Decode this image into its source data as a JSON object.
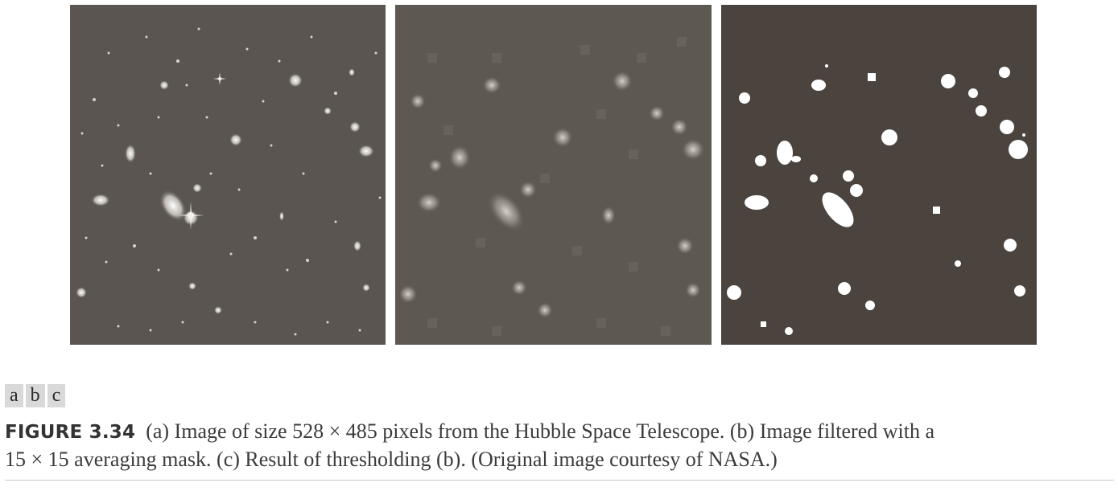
{
  "panels": [
    {
      "key": "a",
      "description_name": "hubble-original-image"
    },
    {
      "key": "b",
      "description_name": "averaged-filtered-image"
    },
    {
      "key": "c",
      "description_name": "thresholded-image"
    }
  ],
  "subfigure_labels": [
    "a",
    "b",
    "c"
  ],
  "caption": {
    "figure_number": "FIGURE 3.34",
    "line1": "(a) Image of size 528 × 485 pixels from the Hubble Space Telescope. (b) Image filtered with a",
    "line2": "15 × 15 averaging mask. (c) Result of thresholding (b). (Original image courtesy of NASA.)"
  }
}
